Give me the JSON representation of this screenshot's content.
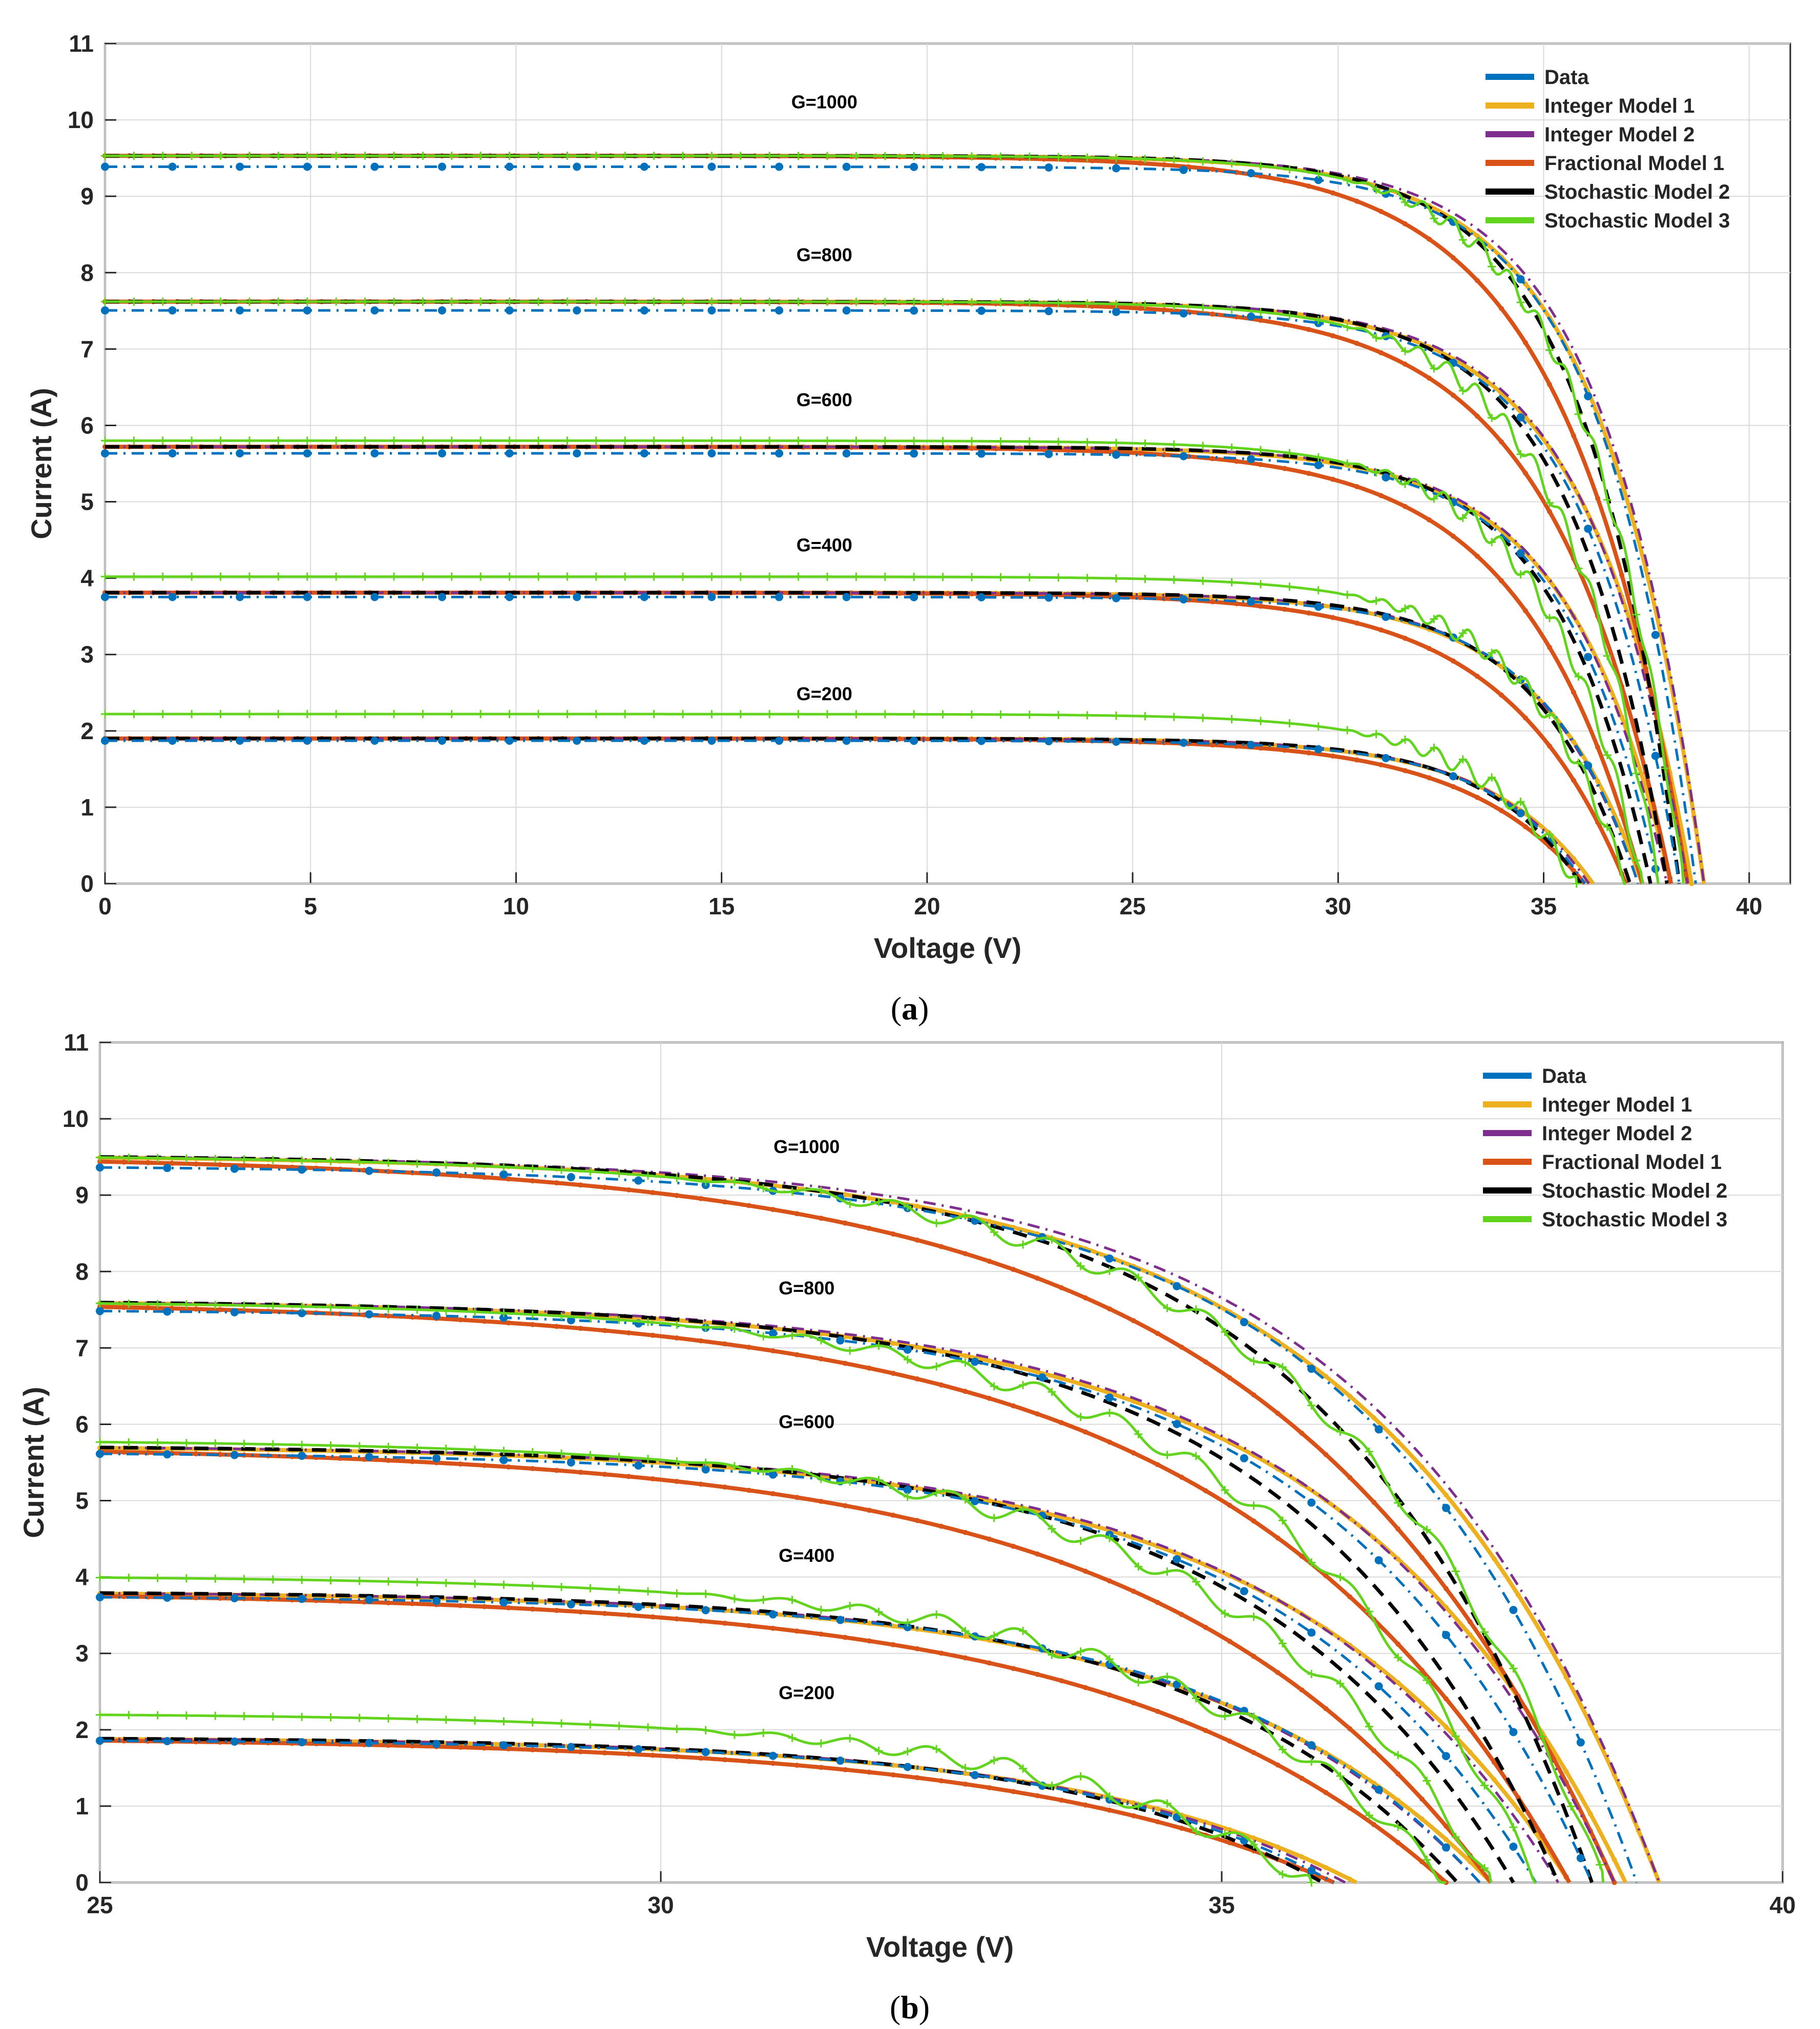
{
  "chart_data": [
    {
      "type": "line",
      "panel_label": "a",
      "title": "",
      "xlabel": "Voltage (V)",
      "ylabel": "Current (A)",
      "xlim": [
        0,
        41
      ],
      "ylim": [
        0,
        11
      ],
      "xticks": [
        "0",
        "5",
        "10",
        "15",
        "20",
        "25",
        "30",
        "35",
        "40"
      ],
      "yticks": [
        "0",
        "1",
        "2",
        "3",
        "4",
        "5",
        "6",
        "7",
        "8",
        "9",
        "10",
        "11"
      ],
      "grid": true,
      "legend_position": "top-right",
      "annotations": [
        {
          "text": "G=1000",
          "x": 17.5,
          "y": 10.15
        },
        {
          "text": "G=800",
          "x": 17.5,
          "y": 8.15
        },
        {
          "text": "G=600",
          "x": 17.5,
          "y": 6.25
        },
        {
          "text": "G=400",
          "x": 17.5,
          "y": 4.35
        },
        {
          "text": "G=200",
          "x": 17.5,
          "y": 2.4
        }
      ]
    },
    {
      "type": "line",
      "panel_label": "b",
      "title": "",
      "xlabel": "Voltage (V)",
      "ylabel": "Current (A)",
      "xlim": [
        25,
        40
      ],
      "ylim": [
        0,
        11
      ],
      "xticks": [
        "25",
        "30",
        "35",
        "40"
      ],
      "yticks": [
        "0",
        "1",
        "2",
        "3",
        "4",
        "5",
        "6",
        "7",
        "8",
        "9",
        "10",
        "11"
      ],
      "grid": true,
      "legend_position": "top-right",
      "annotations": [
        {
          "text": "G=1000",
          "x": 31.3,
          "y": 9.55
        },
        {
          "text": "G=800",
          "x": 31.3,
          "y": 7.7
        },
        {
          "text": "G=600",
          "x": 31.3,
          "y": 5.95
        },
        {
          "text": "G=400",
          "x": 31.3,
          "y": 4.2
        },
        {
          "text": "G=200",
          "x": 31.3,
          "y": 2.4
        }
      ]
    }
  ],
  "series_defs": [
    {
      "key": "data",
      "name": "Data",
      "color": "#0072BD",
      "style": "dashdot",
      "marker": "dot"
    },
    {
      "key": "int1",
      "name": "Integer Model 1",
      "color": "#EDB120",
      "style": "solid",
      "marker": "dot"
    },
    {
      "key": "int2",
      "name": "Integer Model 2",
      "color": "#7E2F8E",
      "style": "dashdot",
      "marker": "none"
    },
    {
      "key": "frac1",
      "name": "Fractional  Model 1",
      "color": "#D95319",
      "style": "solid",
      "marker": "dot"
    },
    {
      "key": "stoch2",
      "name": "Stochastic Model 2",
      "color": "#000000",
      "style": "dash",
      "marker": "none"
    },
    {
      "key": "stoch3",
      "name": "Stochastic Model 3",
      "color": "#62D41E",
      "style": "solid",
      "marker": "plus"
    }
  ],
  "curve_params": {
    "Isc": {
      "1000": 9.53,
      "800": 7.62,
      "600": 5.72,
      "400": 3.81,
      "200": 1.9
    },
    "stoch3_plateau": {
      "1000": 9.53,
      "800": 7.62,
      "600": 5.8,
      "400": 4.02,
      "200": 2.22
    },
    "Voc": {
      "data": {
        "1000": 38.7,
        "800": 38.3,
        "600": 37.8,
        "400": 37.3,
        "200": 36.0
      },
      "int1": {
        "1000": 38.9,
        "800": 38.6,
        "600": 38.1,
        "400": 37.4,
        "200": 36.2
      },
      "int2": {
        "1000": 38.9,
        "800": 38.5,
        "600": 38.0,
        "400": 37.3,
        "200": 36.1
      },
      "frac1": {
        "1000": 38.5,
        "800": 38.1,
        "600": 37.4,
        "400": 37.0,
        "200": 36.0
      },
      "stoch2": {
        "1000": 38.3,
        "800": 38.0,
        "600": 37.6,
        "400": 37.1,
        "200": 35.9
      },
      "stoch3": {
        "1000": 38.4,
        "800": 37.8,
        "600": 37.4,
        "400": 37.0,
        "200": 35.8
      }
    },
    "knee_width": {
      "data": 2.3,
      "int1": 2.5,
      "int2": 2.4,
      "frac1": 2.9,
      "stoch2": 2.3,
      "stoch3": 2.4
    }
  },
  "captions": {
    "a": "a",
    "b": "b"
  }
}
